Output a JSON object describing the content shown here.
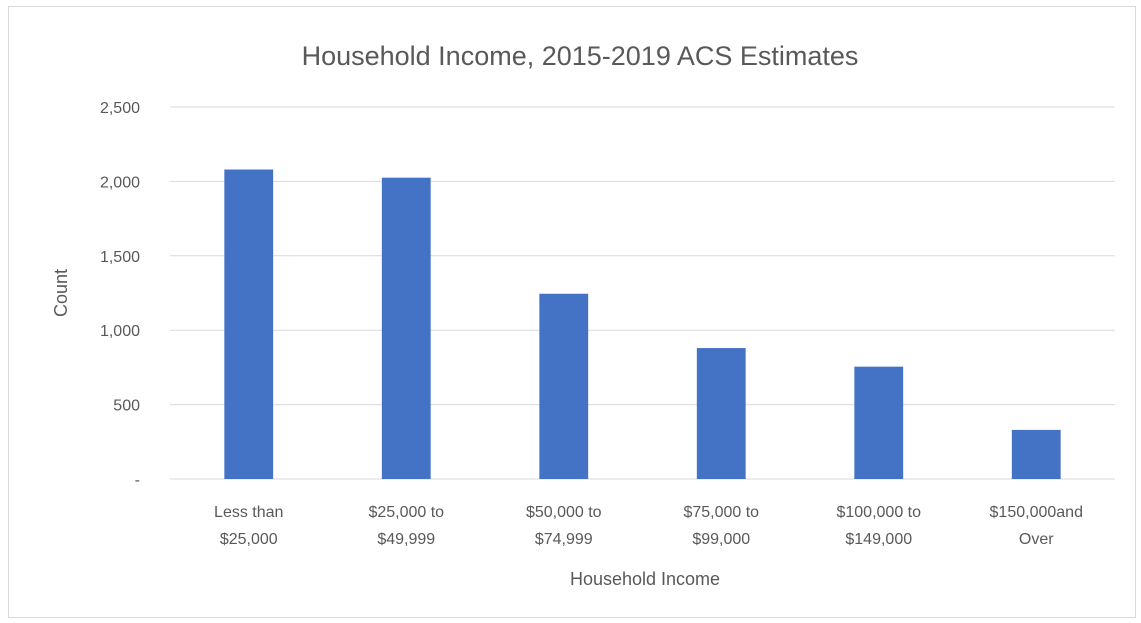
{
  "chart_data": {
    "type": "bar",
    "title": "Household Income, 2015-2019 ACS Estimates",
    "xlabel": "Household Income",
    "ylabel": "Count",
    "categories": [
      [
        "Less than",
        "$25,000"
      ],
      [
        "$25,000 to",
        "$49,999"
      ],
      [
        "$50,000 to",
        "$74,999"
      ],
      [
        "$75,000 to",
        "$99,000"
      ],
      [
        "$100,000 to",
        "$149,000"
      ],
      [
        "$150,000and",
        "Over"
      ]
    ],
    "values": [
      2080,
      2025,
      1245,
      880,
      755,
      330
    ],
    "ylim": [
      0,
      2500
    ],
    "yticks": [
      0,
      500,
      1000,
      1500,
      2000,
      2500
    ],
    "ytick_labels": [
      "-",
      "500",
      "1,000",
      "1,500",
      "2,000",
      "2,500"
    ],
    "grid": true,
    "legend": "none",
    "bar_color": "#4472c4"
  }
}
